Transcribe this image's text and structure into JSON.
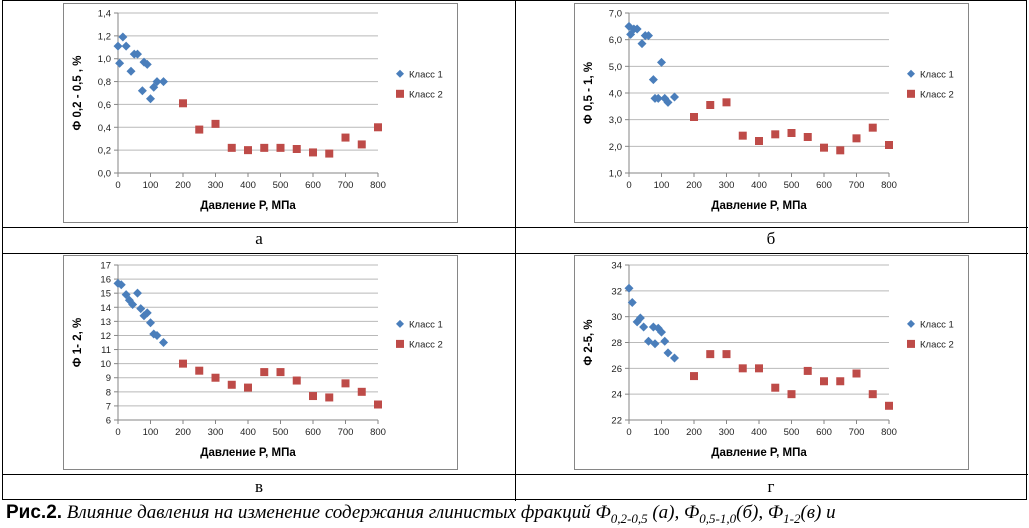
{
  "caption": {
    "lead": "Рис.2.",
    "text": " Влияние давления на изменение содержания глинистых фракций Ф",
    "s1": "0,2-0,5",
    "t1": " (а),  Ф",
    "s2": "0,5-1,0",
    "t2": "(б),  Ф",
    "s3": "1-2",
    "t3": "(в) и"
  },
  "colors": {
    "series1": "#4a7ebb",
    "series2": "#be4b48",
    "grid": "#b9b9b9",
    "axis": "#868686"
  },
  "chart_data": [
    {
      "type": "scatter",
      "panel_label": "а",
      "ylabel": "Ф 0,2 - 0,5 , %",
      "xlabel": "Давление P, МПа",
      "xlim": [
        0,
        800
      ],
      "xstep": 100,
      "ylim": [
        0,
        1.4
      ],
      "ystep": 0.2,
      "ydecimals": 1,
      "grid": "horizontal",
      "legend": "right",
      "series": [
        {
          "name": "Класс 1",
          "marker": "diamond",
          "x": [
            0,
            5,
            15,
            25,
            40,
            50,
            60,
            75,
            80,
            90,
            100,
            110,
            120,
            140
          ],
          "y": [
            1.11,
            0.96,
            1.19,
            1.11,
            0.89,
            1.04,
            1.04,
            0.72,
            0.97,
            0.95,
            0.65,
            0.75,
            0.8,
            0.8
          ]
        },
        {
          "name": "Класс 2",
          "marker": "square",
          "x": [
            200,
            250,
            300,
            350,
            400,
            450,
            500,
            550,
            600,
            650,
            700,
            750,
            800
          ],
          "y": [
            0.61,
            0.38,
            0.43,
            0.22,
            0.2,
            0.22,
            0.22,
            0.21,
            0.18,
            0.17,
            0.31,
            0.25,
            0.4
          ]
        }
      ]
    },
    {
      "type": "scatter",
      "panel_label": "б",
      "ylabel": "Ф 0,5 - 1, %",
      "xlabel": "Давление P, МПа",
      "xlim": [
        0,
        800
      ],
      "xstep": 100,
      "ylim": [
        1.0,
        7.0
      ],
      "ystep": 1.0,
      "ydecimals": 1,
      "grid": "horizontal",
      "legend": "right",
      "series": [
        {
          "name": "Класс 1",
          "marker": "diamond",
          "x": [
            0,
            5,
            15,
            25,
            40,
            50,
            60,
            75,
            80,
            90,
            100,
            110,
            120,
            140
          ],
          "y": [
            6.5,
            6.2,
            6.4,
            6.4,
            5.85,
            6.15,
            6.15,
            4.5,
            3.8,
            3.8,
            5.15,
            3.8,
            3.65,
            3.85
          ]
        },
        {
          "name": "Класс 2",
          "marker": "square",
          "x": [
            200,
            250,
            300,
            350,
            400,
            450,
            500,
            550,
            600,
            650,
            700,
            750,
            800
          ],
          "y": [
            3.1,
            3.55,
            3.65,
            2.4,
            2.2,
            2.45,
            2.5,
            2.35,
            1.95,
            1.85,
            2.3,
            2.7,
            2.05
          ]
        }
      ]
    },
    {
      "type": "scatter",
      "panel_label": "в",
      "ylabel": "Ф 1- 2, %",
      "xlabel": "Давление P, МПа",
      "xlim": [
        0,
        800
      ],
      "xstep": 100,
      "ylim": [
        6,
        17
      ],
      "ystep": 1,
      "ydecimals": 0,
      "grid": "horizontal",
      "legend": "right",
      "series": [
        {
          "name": "Класс 1",
          "marker": "diamond",
          "x": [
            0,
            10,
            25,
            35,
            45,
            60,
            70,
            80,
            90,
            100,
            110,
            120,
            140
          ],
          "y": [
            15.7,
            15.6,
            14.9,
            14.5,
            14.2,
            15.0,
            13.9,
            13.4,
            13.6,
            12.9,
            12.1,
            12.0,
            11.5
          ]
        },
        {
          "name": "Класс 2",
          "marker": "square",
          "x": [
            200,
            250,
            300,
            350,
            400,
            450,
            500,
            550,
            600,
            650,
            700,
            750,
            800
          ],
          "y": [
            10.0,
            9.5,
            9.0,
            8.5,
            8.3,
            9.4,
            9.4,
            8.8,
            7.7,
            7.6,
            8.6,
            8.0,
            7.1
          ]
        }
      ]
    },
    {
      "type": "scatter",
      "panel_label": "г",
      "ylabel": "Ф 2-5, %",
      "xlabel": "Давление P, МПа",
      "xlim": [
        0,
        800
      ],
      "xstep": 100,
      "ylim": [
        22,
        34
      ],
      "ystep": 2,
      "ydecimals": 0,
      "grid": "horizontal",
      "legend": "right",
      "series": [
        {
          "name": "Класс 1",
          "marker": "diamond",
          "x": [
            0,
            10,
            25,
            35,
            45,
            60,
            75,
            80,
            90,
            100,
            110,
            120,
            140
          ],
          "y": [
            32.2,
            31.1,
            29.6,
            29.9,
            29.2,
            28.1,
            29.2,
            27.9,
            29.1,
            28.8,
            28.1,
            27.2,
            26.8
          ]
        },
        {
          "name": "Класс 2",
          "marker": "square",
          "x": [
            200,
            250,
            300,
            350,
            400,
            450,
            500,
            550,
            600,
            650,
            700,
            750,
            800
          ],
          "y": [
            25.4,
            27.1,
            27.1,
            26.0,
            26.0,
            24.5,
            24.0,
            25.8,
            25.0,
            25.0,
            25.6,
            24.0,
            23.1
          ]
        }
      ]
    }
  ]
}
